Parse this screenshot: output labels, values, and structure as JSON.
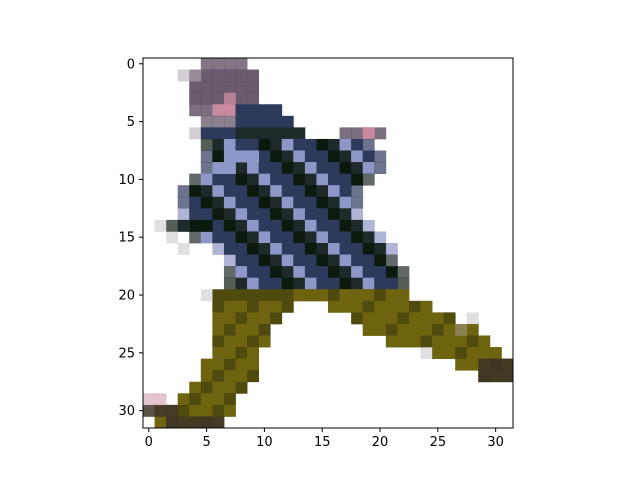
{
  "figure": {
    "image_description": "Low-resolution 32x32 pixelated image of a person in a dark blue plaid shirt and olive green pants, leaping/running to the right",
    "palette": {
      "background": "#ffffff",
      "hair": "#5a4a5e",
      "skin": "#c98aa0",
      "shirt_dark": "#1e2a2a",
      "shirt_navy": "#2d3a5c",
      "shirt_light": "#8f96c8",
      "shirt_black": "#0c1a0e",
      "pants": "#6e6410",
      "pants_dark": "#4f4a0e",
      "shoe": "#3e3426",
      "shadow": "#b6aeb8"
    }
  },
  "axes": {
    "x_ticks": [
      "0",
      "5",
      "10",
      "15",
      "20",
      "25",
      "30"
    ],
    "y_ticks": [
      "0",
      "5",
      "10",
      "15",
      "20",
      "25",
      "30"
    ],
    "x_range": [
      -0.5,
      31.5
    ],
    "y_range": [
      -0.5,
      31.5
    ]
  }
}
